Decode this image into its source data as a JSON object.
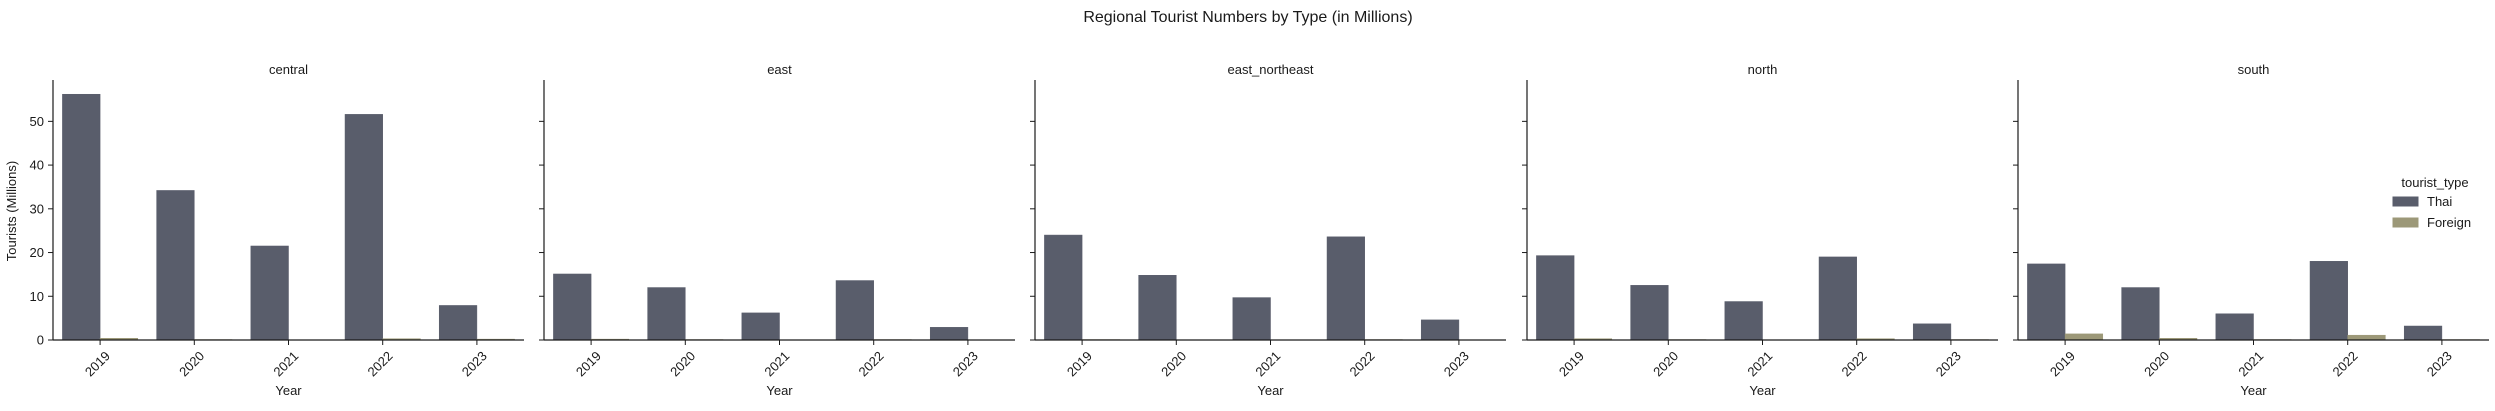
{
  "chart_data": {
    "type": "bar",
    "title": "Regional Tourist Numbers by Type (in Millions)",
    "xlabel": "Year",
    "ylabel": "Tourists (Millions)",
    "categories": [
      "2019",
      "2020",
      "2021",
      "2022",
      "2023"
    ],
    "ylim": [
      0,
      59
    ],
    "yticks": [
      0,
      10,
      20,
      30,
      40,
      50
    ],
    "grid": false,
    "legend": {
      "title": "tourist_type",
      "placement": "right",
      "entries": [
        "Thai",
        "Foreign"
      ]
    },
    "colors": {
      "Thai": "#595d6b",
      "Foreign": "#9c9878"
    },
    "panels": [
      {
        "title": "central",
        "series": [
          {
            "name": "Thai",
            "values": [
              56.2,
              34.2,
              21.5,
              51.6,
              7.9
            ]
          },
          {
            "name": "Foreign",
            "values": [
              0.4,
              0.1,
              0.0,
              0.3,
              0.2
            ]
          }
        ]
      },
      {
        "title": "east",
        "series": [
          {
            "name": "Thai",
            "values": [
              15.1,
              12.0,
              6.2,
              13.6,
              2.9
            ]
          },
          {
            "name": "Foreign",
            "values": [
              0.2,
              0.1,
              0.0,
              0.1,
              0.0
            ]
          }
        ]
      },
      {
        "title": "east_northeast",
        "series": [
          {
            "name": "Thai",
            "values": [
              24.0,
              14.8,
              9.7,
              23.6,
              4.6
            ]
          },
          {
            "name": "Foreign",
            "values": [
              0.1,
              0.0,
              0.0,
              0.1,
              0.0
            ]
          }
        ]
      },
      {
        "title": "north",
        "series": [
          {
            "name": "Thai",
            "values": [
              19.3,
              12.5,
              8.8,
              19.0,
              3.7
            ]
          },
          {
            "name": "Foreign",
            "values": [
              0.3,
              0.1,
              0.0,
              0.3,
              0.1
            ]
          }
        ]
      },
      {
        "title": "south",
        "series": [
          {
            "name": "Thai",
            "values": [
              17.4,
              12.0,
              6.0,
              18.0,
              3.2
            ]
          },
          {
            "name": "Foreign",
            "values": [
              1.4,
              0.4,
              0.1,
              1.1,
              0.1
            ]
          }
        ]
      }
    ]
  }
}
